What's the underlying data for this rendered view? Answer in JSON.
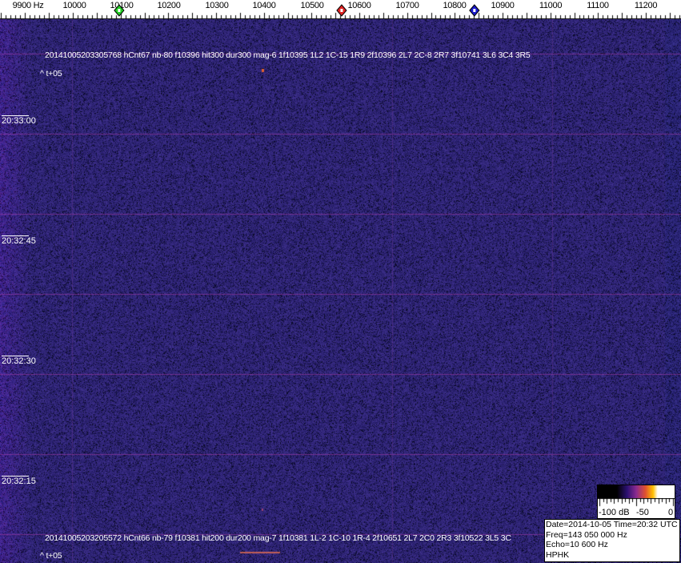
{
  "header": {
    "freq_labels": [
      "9900 Hz",
      "10000",
      "10100",
      "10200",
      "10300",
      "10400",
      "10500",
      "10600",
      "10700",
      "10800",
      "10900",
      "11000",
      "11100",
      "11200"
    ],
    "markers": [
      {
        "name": "green",
        "freq_hz": 10097,
        "color": "#22cc22"
      },
      {
        "name": "red",
        "freq_hz": 10563,
        "color": "#dd2222"
      },
      {
        "name": "blue",
        "freq_hz": 10841,
        "color": "#1a1acc"
      }
    ]
  },
  "spectrogram": {
    "background_color": "#2a2a7a",
    "time_labels": [
      "20:33:00",
      "20:32:45",
      "20:32:30",
      "20:32:15"
    ],
    "events": [
      {
        "line": "20141005203305768 hCnt67 nb-80 f10396 hit300 dur300 mag-6 1f10395 1L2 1C-15 1R9 2f10396 2L7 2C-8 2R7 3f10741 3L6 3C4 3R5",
        "sub": "^ t+05"
      },
      {
        "line": "20141005203205572 hCnt66 nb-79 f10381 hit200 dur200 mag-7 1f10381 1L-2 1C-10 1R-4 2f10651 2L7 2C0 2R3 3f10522 3L5 3C",
        "sub": "^ t+05"
      }
    ]
  },
  "colorbar": {
    "labels": [
      "-100 dB",
      "-50",
      "0"
    ]
  },
  "info": {
    "date_time": "Date=2014-10-05 Time=20:32 UTC",
    "freq": "Freq=143 050 000 Hz",
    "echo": "Echo=10 600 Hz",
    "station": "HPHK"
  }
}
